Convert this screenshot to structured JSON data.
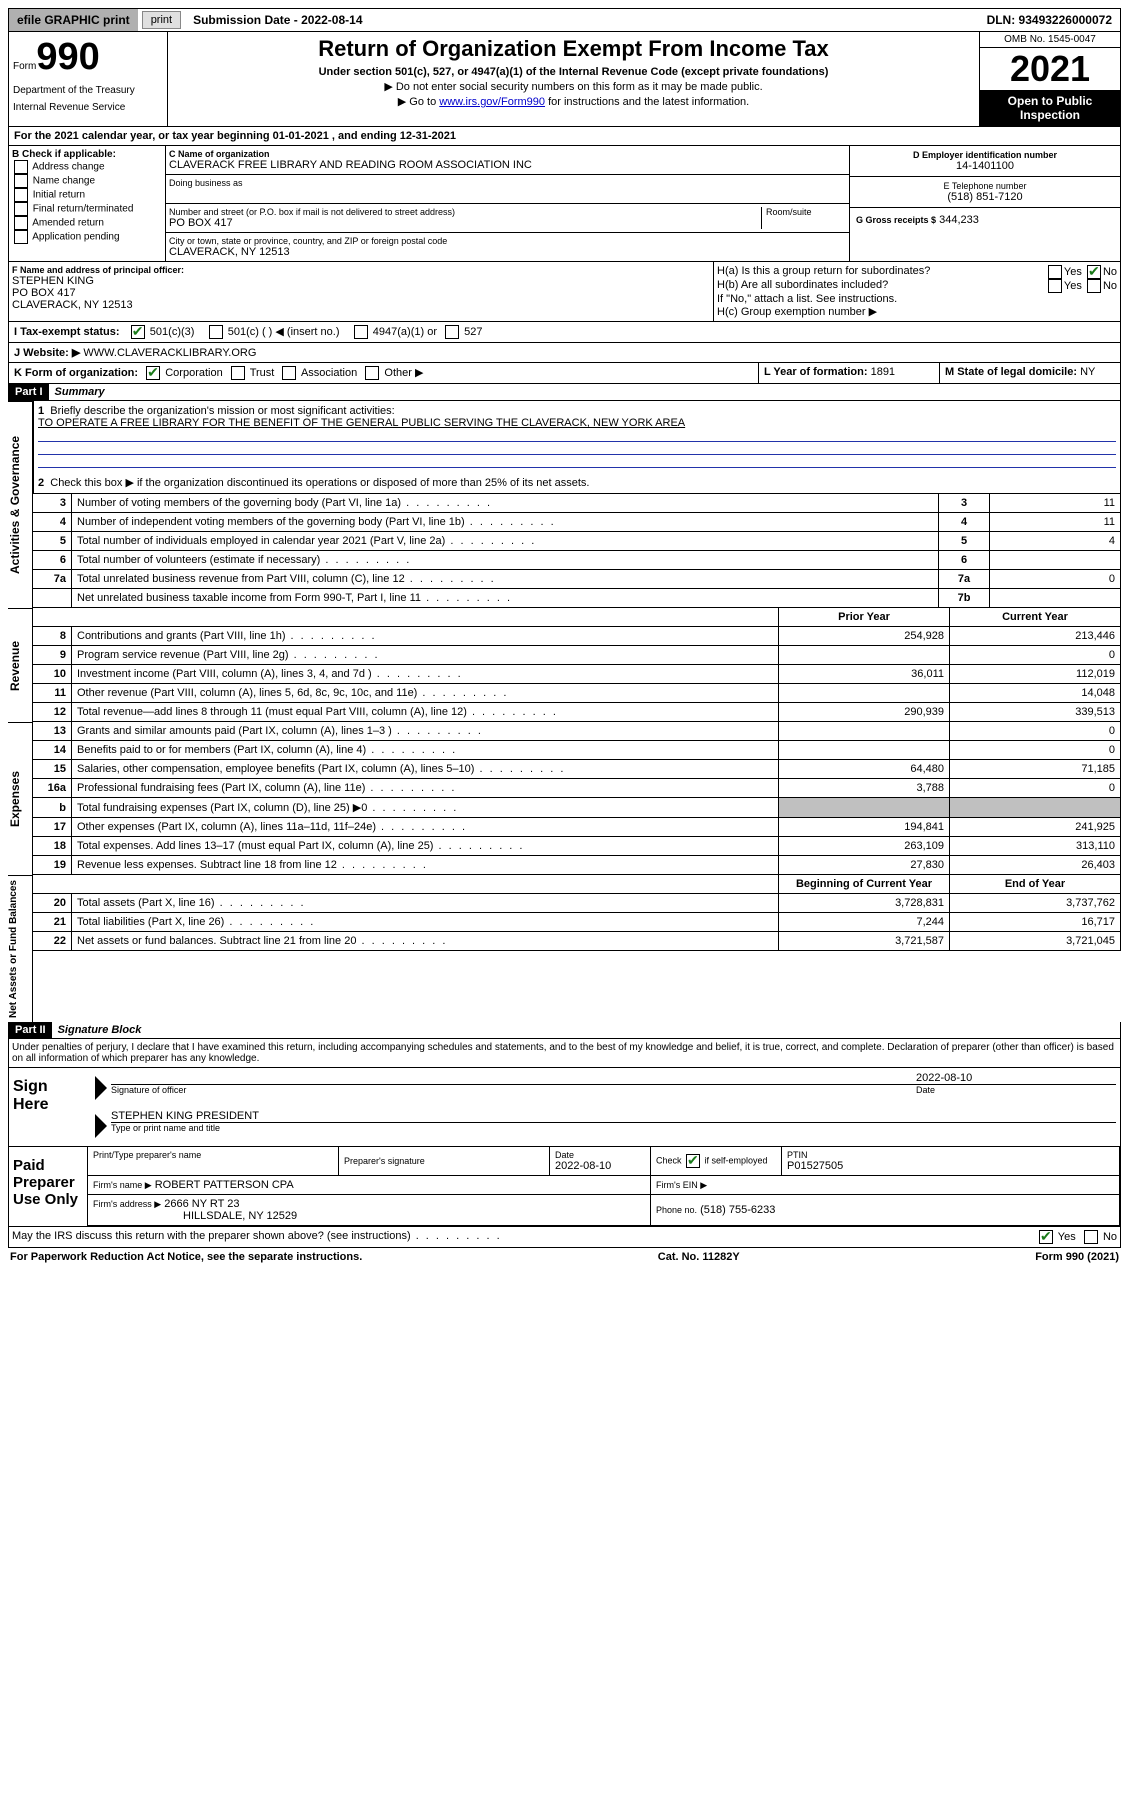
{
  "topbar": {
    "efile": "efile GRAPHIC print",
    "subdate_label": "Submission Date - 2022-08-14",
    "dln": "DLN: 93493226000072"
  },
  "header": {
    "form_word": "Form",
    "form_num": "990",
    "dept": "Department of the Treasury",
    "irs": "Internal Revenue Service",
    "title": "Return of Organization Exempt From Income Tax",
    "subtitle": "Under section 501(c), 527, or 4947(a)(1) of the Internal Revenue Code (except private foundations)",
    "note1": "▶ Do not enter social security numbers on this form as it may be made public.",
    "note2_pre": "▶ Go to ",
    "note2_link": "www.irs.gov/Form990",
    "note2_post": " for instructions and the latest information.",
    "omb": "OMB No. 1545-0047",
    "year": "2021",
    "open": "Open to Public Inspection"
  },
  "line_a": "For the 2021 calendar year, or tax year beginning 01-01-2021   , and ending 12-31-2021",
  "box_b": {
    "title": "B Check if applicable:",
    "opts": [
      "Address change",
      "Name change",
      "Initial return",
      "Final return/terminated",
      "Amended return",
      "Application pending"
    ]
  },
  "box_c": {
    "label": "C Name of organization",
    "name": "CLAVERACK FREE LIBRARY AND READING ROOM ASSOCIATION INC",
    "dba_label": "Doing business as",
    "street_label": "Number and street (or P.O. box if mail is not delivered to street address)",
    "room_label": "Room/suite",
    "street": "PO BOX 417",
    "city_label": "City or town, state or province, country, and ZIP or foreign postal code",
    "city": "CLAVERACK, NY  12513"
  },
  "box_d": {
    "label": "D Employer identification number",
    "val": "14-1401100"
  },
  "box_e": {
    "label": "E Telephone number",
    "val": "(518) 851-7120"
  },
  "box_g": {
    "label": "G Gross receipts $",
    "val": "344,233"
  },
  "box_f": {
    "label": "F Name and address of principal officer:",
    "name": "STEPHEN KING",
    "street": "PO BOX 417",
    "city": "CLAVERACK, NY  12513"
  },
  "box_h": {
    "ha": "H(a)  Is this a group return for subordinates?",
    "hb": "H(b)  Are all subordinates included?",
    "hb_note": "If \"No,\" attach a list. See instructions.",
    "hc": "H(c)  Group exemption number ▶"
  },
  "line_i": {
    "label": "I     Tax-exempt status:",
    "o1": "501(c)(3)",
    "o2": "501(c) (  ) ◀ (insert no.)",
    "o3": "4947(a)(1) or",
    "o4": "527"
  },
  "line_j": {
    "label": "J     Website: ▶",
    "val": "WWW.CLAVERACKLIBRARY.ORG"
  },
  "line_k": {
    "label": "K Form of organization:",
    "opts": [
      "Corporation",
      "Trust",
      "Association",
      "Other ▶"
    ]
  },
  "line_l": {
    "label": "L Year of formation:",
    "val": "1891"
  },
  "line_m": {
    "label": "M State of legal domicile:",
    "val": "NY"
  },
  "part1": {
    "num": "Part I",
    "title": "Summary"
  },
  "summary": {
    "l1": "Briefly describe the organization's mission or most significant activities:",
    "l1v": "TO OPERATE A FREE LIBRARY FOR THE BENEFIT OF THE GENERAL PUBLIC SERVING THE CLAVERACK, NEW YORK AREA",
    "l2": "Check this box ▶        if the organization discontinued its operations or disposed of more than 25% of its net assets.",
    "rows": [
      {
        "n": "3",
        "t": "Number of voting members of the governing body (Part VI, line 1a)",
        "c": "3",
        "v": "11"
      },
      {
        "n": "4",
        "t": "Number of independent voting members of the governing body (Part VI, line 1b)",
        "c": "4",
        "v": "11"
      },
      {
        "n": "5",
        "t": "Total number of individuals employed in calendar year 2021 (Part V, line 2a)",
        "c": "5",
        "v": "4"
      },
      {
        "n": "6",
        "t": "Total number of volunteers (estimate if necessary)",
        "c": "6",
        "v": ""
      },
      {
        "n": "7a",
        "t": "Total unrelated business revenue from Part VIII, column (C), line 12",
        "c": "7a",
        "v": "0"
      },
      {
        "n": "",
        "t": "Net unrelated business taxable income from Form 990-T, Part I, line 11",
        "c": "7b",
        "v": ""
      }
    ],
    "col_prior": "Prior Year",
    "col_current": "Current Year",
    "rev": [
      {
        "n": "8",
        "t": "Contributions and grants (Part VIII, line 1h)",
        "p": "254,928",
        "c": "213,446"
      },
      {
        "n": "9",
        "t": "Program service revenue (Part VIII, line 2g)",
        "p": "",
        "c": "0"
      },
      {
        "n": "10",
        "t": "Investment income (Part VIII, column (A), lines 3, 4, and 7d )",
        "p": "36,011",
        "c": "112,019"
      },
      {
        "n": "11",
        "t": "Other revenue (Part VIII, column (A), lines 5, 6d, 8c, 9c, 10c, and 11e)",
        "p": "",
        "c": "14,048"
      },
      {
        "n": "12",
        "t": "Total revenue—add lines 8 through 11 (must equal Part VIII, column (A), line 12)",
        "p": "290,939",
        "c": "339,513"
      }
    ],
    "exp": [
      {
        "n": "13",
        "t": "Grants and similar amounts paid (Part IX, column (A), lines 1–3 )",
        "p": "",
        "c": "0"
      },
      {
        "n": "14",
        "t": "Benefits paid to or for members (Part IX, column (A), line 4)",
        "p": "",
        "c": "0"
      },
      {
        "n": "15",
        "t": "Salaries, other compensation, employee benefits (Part IX, column (A), lines 5–10)",
        "p": "64,480",
        "c": "71,185"
      },
      {
        "n": "16a",
        "t": "Professional fundraising fees (Part IX, column (A), line 11e)",
        "p": "3,788",
        "c": "0"
      },
      {
        "n": "b",
        "t": "Total fundraising expenses (Part IX, column (D), line 25) ▶0",
        "p": "GRAY",
        "c": "GRAY"
      },
      {
        "n": "17",
        "t": "Other expenses (Part IX, column (A), lines 11a–11d, 11f–24e)",
        "p": "194,841",
        "c": "241,925"
      },
      {
        "n": "18",
        "t": "Total expenses. Add lines 13–17 (must equal Part IX, column (A), line 25)",
        "p": "263,109",
        "c": "313,110"
      },
      {
        "n": "19",
        "t": "Revenue less expenses. Subtract line 18 from line 12",
        "p": "27,830",
        "c": "26,403"
      }
    ],
    "col_begin": "Beginning of Current Year",
    "col_end": "End of Year",
    "net": [
      {
        "n": "20",
        "t": "Total assets (Part X, line 16)",
        "p": "3,728,831",
        "c": "3,737,762"
      },
      {
        "n": "21",
        "t": "Total liabilities (Part X, line 26)",
        "p": "7,244",
        "c": "16,717"
      },
      {
        "n": "22",
        "t": "Net assets or fund balances. Subtract line 21 from line 20",
        "p": "3,721,587",
        "c": "3,721,045"
      }
    ]
  },
  "side": {
    "gov": "Activities & Governance",
    "rev": "Revenue",
    "exp": "Expenses",
    "net": "Net Assets or Fund Balances"
  },
  "part2": {
    "num": "Part II",
    "title": "Signature Block"
  },
  "sig": {
    "decl": "Under penalties of perjury, I declare that I have examined this return, including accompanying schedules and statements, and to the best of my knowledge and belief, it is true, correct, and complete. Declaration of preparer (other than officer) is based on all information of which preparer has any knowledge.",
    "here": "Sign Here",
    "sig_of": "Signature of officer",
    "date": "Date",
    "date_val": "2022-08-10",
    "name": "STEPHEN KING  PRESIDENT",
    "name_lbl": "Type or print name and title",
    "paid": "Paid Preparer Use Only",
    "p_name_lbl": "Print/Type preparer's name",
    "p_sig_lbl": "Preparer's signature",
    "p_date_lbl": "Date",
    "p_date": "2022-08-10",
    "p_check": "Check          if self-employed",
    "p_ptin_lbl": "PTIN",
    "p_ptin": "P01527505",
    "firm_name_lbl": "Firm's name      ▶",
    "firm_name": "ROBERT PATTERSON CPA",
    "firm_ein_lbl": "Firm's EIN ▶",
    "firm_addr_lbl": "Firm's address ▶",
    "firm_addr1": "2666 NY RT 23",
    "firm_addr2": "HILLSDALE, NY  12529",
    "phone_lbl": "Phone no.",
    "phone": "(518) 755-6233",
    "may": "May the IRS discuss this return with the preparer shown above? (see instructions)"
  },
  "footer": {
    "left": "For Paperwork Reduction Act Notice, see the separate instructions.",
    "mid": "Cat. No. 11282Y",
    "right": "Form 990 (2021)"
  },
  "yn": {
    "yes": "Yes",
    "no": "No"
  }
}
